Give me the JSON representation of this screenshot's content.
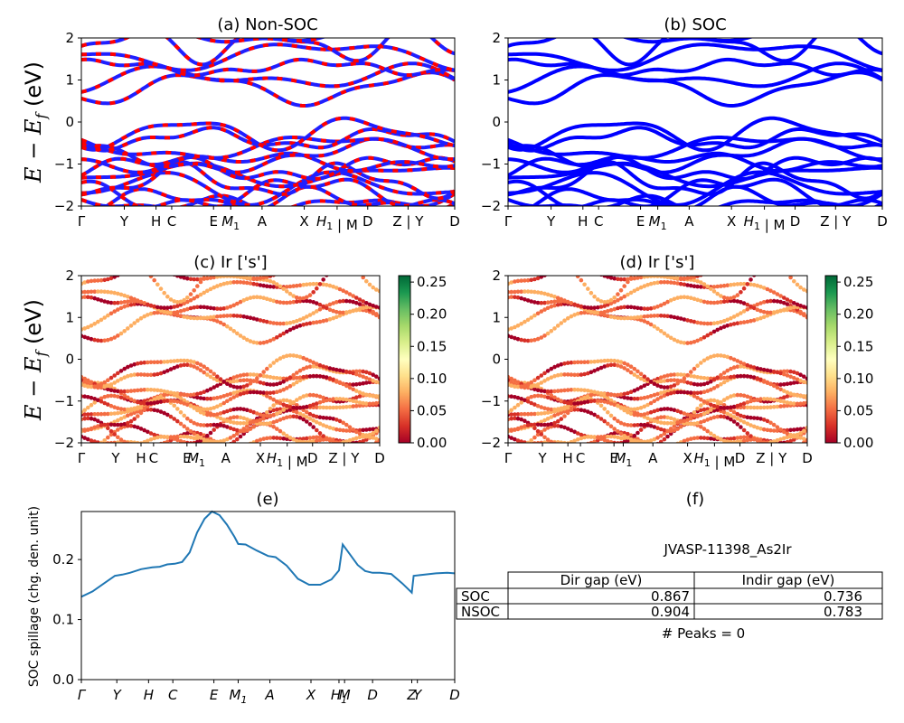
{
  "panels": {
    "a": {
      "title": "(a) Non-SOC",
      "ylabel": "E − E_f (eV)",
      "ylim": [
        -2,
        2
      ],
      "yticks": [
        "2",
        "1",
        "0",
        "−1",
        "−2"
      ]
    },
    "b": {
      "title": "(b) SOC",
      "ylim": [
        -2,
        2
      ],
      "yticks": [
        "2",
        "1",
        "0",
        "−1",
        "−2"
      ]
    },
    "c": {
      "title": "(c)  Ir ['s']",
      "ylabel": "E − E_f (eV)",
      "ylim": [
        -2,
        2
      ],
      "yticks": [
        "2",
        "1",
        "0",
        "−1",
        "−2"
      ]
    },
    "d": {
      "title": "(d) Ir ['s']",
      "ylim": [
        -2,
        2
      ],
      "yticks": [
        "2",
        "1",
        "0",
        "−1",
        "−2"
      ]
    },
    "e": {
      "title": "(e)",
      "ylabel": "SOC spillage (chg. den. unit)",
      "yticks": [
        "0.0",
        "0.1",
        "0.2"
      ]
    },
    "f": {
      "title": "(f)"
    }
  },
  "kpath_labels": [
    "Γ",
    "Y",
    "H",
    "C",
    "E",
    "M1",
    "A",
    "X",
    "H1",
    "M",
    "D",
    "Z",
    "Y",
    "D"
  ],
  "kpath_ticks_ab": [
    {
      "label": "Γ",
      "x": 0
    },
    {
      "label": "Y",
      "x": 0.115
    },
    {
      "label": "H",
      "x": 0.2
    },
    {
      "label": "C",
      "x": 0.242
    },
    {
      "label": "E",
      "x": 0.354
    },
    {
      "label": "M1",
      "x": 0.4
    },
    {
      "label": "A",
      "x": 0.484
    },
    {
      "label": "X",
      "x": 0.597
    },
    {
      "label": "H1 | M",
      "x": 0.685
    },
    {
      "label": "D",
      "x": 0.767
    },
    {
      "label": "Z | Y",
      "x": 0.875
    },
    {
      "label": "D",
      "x": 1
    }
  ],
  "kpath_ticks_cd": [
    {
      "label": "Γ",
      "x": 0
    },
    {
      "label": "Y",
      "x": 0.115
    },
    {
      "label": "H",
      "x": 0.2
    },
    {
      "label": "C",
      "x": 0.242
    },
    {
      "label": "E",
      "x": 0.354
    },
    {
      "label": "M1",
      "x": 0.385
    },
    {
      "label": "A",
      "x": 0.484
    },
    {
      "label": "X",
      "x": 0.6
    },
    {
      "label": "H1 | M",
      "x": 0.69
    },
    {
      "label": "D",
      "x": 0.775
    },
    {
      "label": "Z | Y",
      "x": 0.88
    },
    {
      "label": "D",
      "x": 1
    }
  ],
  "colorbar": {
    "ticks": [
      "0.00",
      "0.05",
      "0.10",
      "0.15",
      "0.20",
      "0.25"
    ],
    "min": 0,
    "max": 0.26
  },
  "colors": {
    "nonsoc_red": "#ff0000",
    "nonsoc_blue": "#1f1fff",
    "soc_blue": "#0000ff",
    "spillage_line": "#1f77b4"
  },
  "chart_data": [
    {
      "type": "line",
      "title": "(e)",
      "ylabel": "SOC spillage (chg. den. unit)",
      "xtick_labels": [
        "Γ",
        "Y",
        "H",
        "C",
        "E",
        "M1",
        "A",
        "X",
        "H1",
        "M",
        "D",
        "Z",
        "Y",
        "D"
      ],
      "xtick_positions": [
        0,
        0.095,
        0.18,
        0.245,
        0.355,
        0.42,
        0.505,
        0.615,
        0.69,
        0.705,
        0.78,
        0.885,
        0.9,
        1.0
      ],
      "ylim": [
        0,
        0.28
      ],
      "x": [
        0,
        0.03,
        0.06,
        0.09,
        0.11,
        0.13,
        0.16,
        0.19,
        0.21,
        0.23,
        0.25,
        0.27,
        0.29,
        0.31,
        0.33,
        0.35,
        0.37,
        0.39,
        0.41,
        0.42,
        0.44,
        0.47,
        0.5,
        0.52,
        0.55,
        0.58,
        0.61,
        0.64,
        0.67,
        0.69,
        0.7,
        0.72,
        0.74,
        0.76,
        0.78,
        0.8,
        0.83,
        0.86,
        0.885,
        0.89,
        0.92,
        0.95,
        0.98,
        1.0
      ],
      "y": [
        0.138,
        0.147,
        0.16,
        0.173,
        0.175,
        0.178,
        0.184,
        0.187,
        0.188,
        0.192,
        0.193,
        0.196,
        0.212,
        0.245,
        0.268,
        0.28,
        0.274,
        0.258,
        0.238,
        0.226,
        0.225,
        0.215,
        0.206,
        0.204,
        0.19,
        0.168,
        0.158,
        0.158,
        0.167,
        0.182,
        0.225,
        0.208,
        0.191,
        0.181,
        0.178,
        0.178,
        0.176,
        0.16,
        0.145,
        0.173,
        0.175,
        0.177,
        0.178,
        0.177
      ]
    },
    {
      "type": "table",
      "title": "JVASP-11398_As2Ir",
      "columns": [
        "Dir gap (eV)",
        "Indir gap (eV)"
      ],
      "rows": [
        {
          "label": "SOC",
          "values": [
            "0.867",
            "0.736"
          ]
        },
        {
          "label": "NSOC",
          "values": [
            "0.904",
            "0.783"
          ]
        }
      ],
      "footer": "# Peaks = 0"
    }
  ]
}
